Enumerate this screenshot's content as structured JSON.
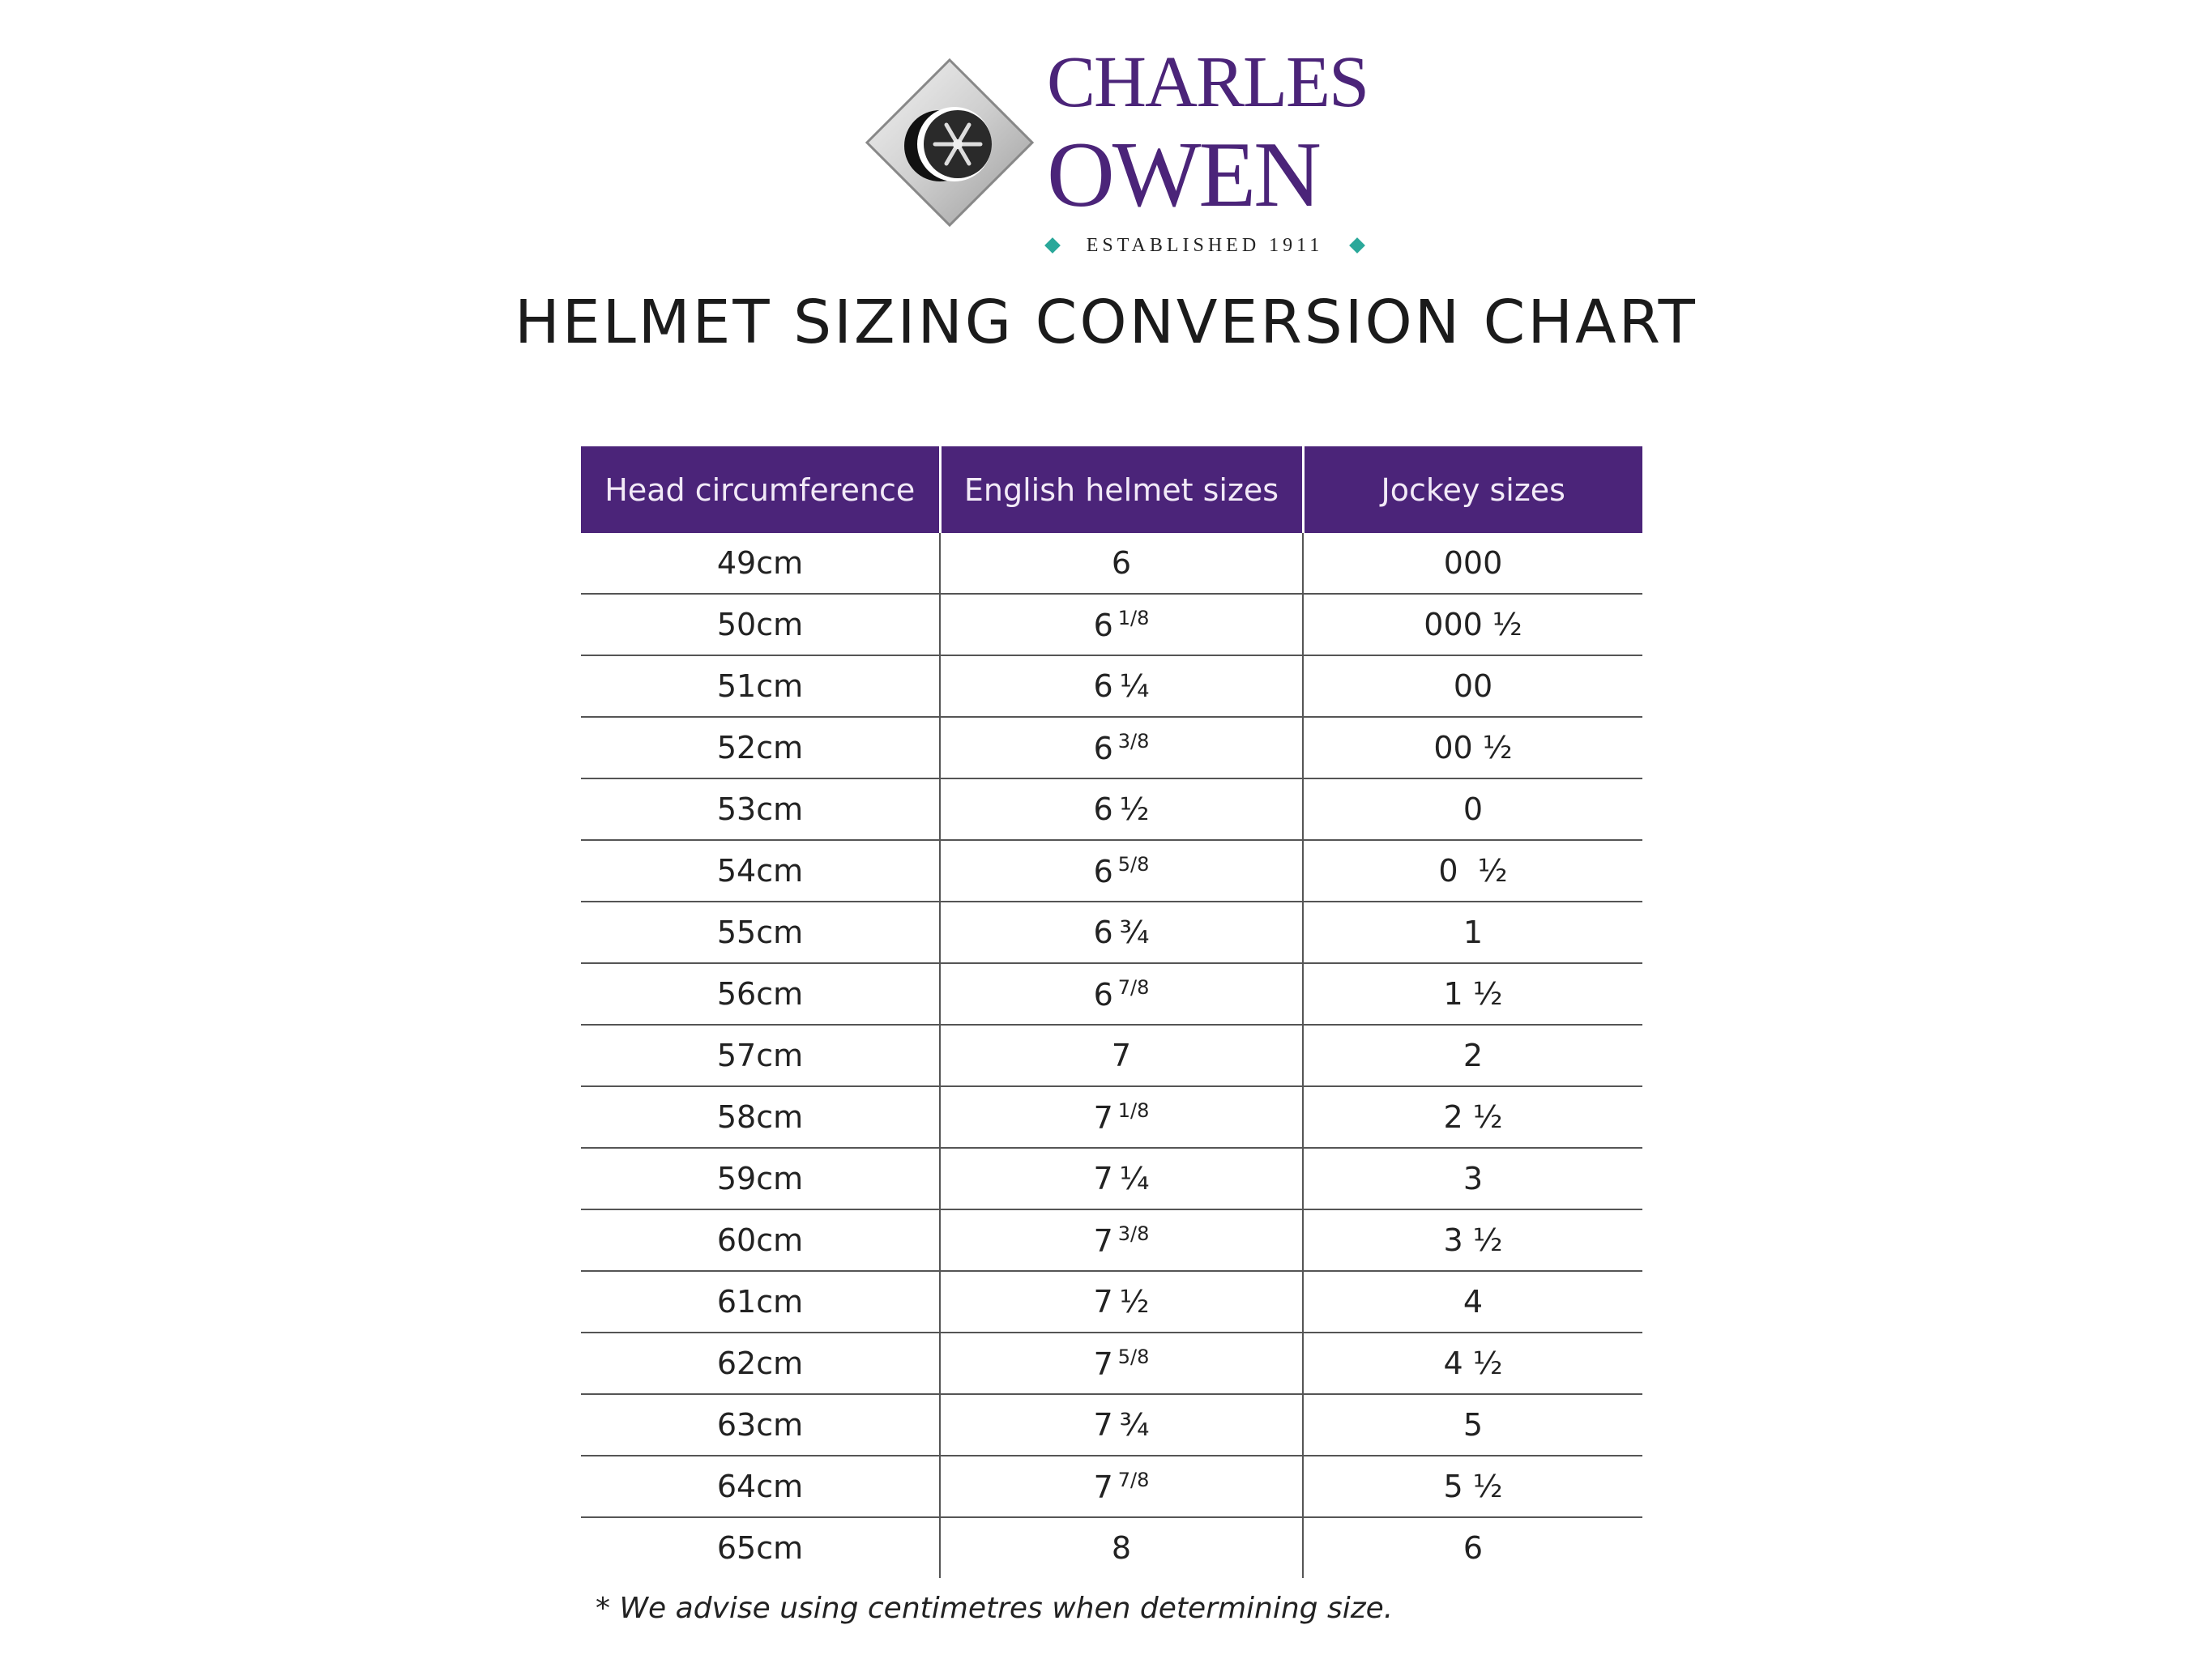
{
  "logo": {
    "line1": "CHARLES",
    "line2": "OWEN",
    "tagline": "ESTABLISHED 1911",
    "brand_color": "#4b2479",
    "accent_color": "#2aa89a"
  },
  "title": "HELMET SIZING CONVERSION CHART",
  "table": {
    "headers": [
      "Head circumference",
      "English helmet sizes",
      "Jockey sizes"
    ],
    "header_color": "#4b2479",
    "rows": [
      {
        "head": "49cm",
        "english": "6",
        "fraction": "",
        "superscript": false,
        "jockey": "000"
      },
      {
        "head": "50cm",
        "english": "6",
        "fraction": "1/8",
        "superscript": true,
        "jockey": "000 ½"
      },
      {
        "head": "51cm",
        "english": "6",
        "fraction": "¼",
        "superscript": false,
        "jockey": "00"
      },
      {
        "head": "52cm",
        "english": "6",
        "fraction": "3/8",
        "superscript": true,
        "jockey": "00 ½"
      },
      {
        "head": "53cm",
        "english": "6",
        "fraction": "½",
        "superscript": false,
        "jockey": "0"
      },
      {
        "head": "54cm",
        "english": "6",
        "fraction": "5/8",
        "superscript": true,
        "jockey": "0  ½"
      },
      {
        "head": "55cm",
        "english": "6",
        "fraction": "¾",
        "superscript": false,
        "jockey": "1"
      },
      {
        "head": "56cm",
        "english": "6",
        "fraction": "7/8",
        "superscript": true,
        "jockey": "1 ½"
      },
      {
        "head": "57cm",
        "english": "7",
        "fraction": "",
        "superscript": false,
        "jockey": "2"
      },
      {
        "head": "58cm",
        "english": "7",
        "fraction": "1/8",
        "superscript": true,
        "jockey": "2 ½"
      },
      {
        "head": "59cm",
        "english": "7",
        "fraction": "¼",
        "superscript": false,
        "jockey": "3"
      },
      {
        "head": "60cm",
        "english": "7",
        "fraction": "3/8",
        "superscript": true,
        "jockey": "3 ½"
      },
      {
        "head": "61cm",
        "english": "7",
        "fraction": "½",
        "superscript": false,
        "jockey": "4"
      },
      {
        "head": "62cm",
        "english": "7",
        "fraction": "5/8",
        "superscript": true,
        "jockey": "4 ½"
      },
      {
        "head": "63cm",
        "english": "7",
        "fraction": "¾",
        "superscript": false,
        "jockey": "5"
      },
      {
        "head": "64cm",
        "english": "7",
        "fraction": "7/8",
        "superscript": true,
        "jockey": "5 ½"
      },
      {
        "head": "65cm",
        "english": "8",
        "fraction": "",
        "superscript": false,
        "jockey": "6"
      }
    ]
  },
  "footnote": "* We advise using centimetres when determining size."
}
